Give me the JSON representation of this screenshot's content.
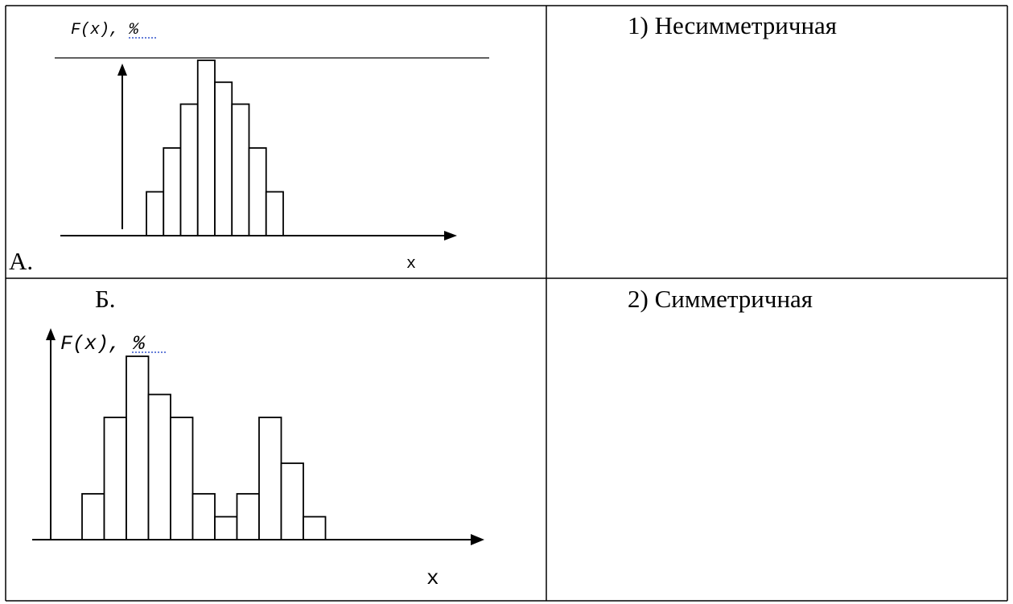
{
  "table": {
    "rows": [
      {
        "chart_label": "А.",
        "option": "1) Несимметричная"
      },
      {
        "chart_label": "Б.",
        "option": "2) Симметричная"
      }
    ]
  },
  "chart_data": [
    {
      "type": "bar",
      "ylabel": "F(x), %",
      "xlabel": "x",
      "values": [
        1,
        2,
        3,
        4,
        3.5,
        3,
        2,
        1
      ]
    },
    {
      "type": "bar",
      "ylabel": "F(x), %",
      "xlabel": "x",
      "values": [
        1.5,
        4,
        6,
        4.75,
        4,
        1.5,
        0.75,
        1.5,
        4,
        2.5,
        0.75
      ]
    }
  ]
}
